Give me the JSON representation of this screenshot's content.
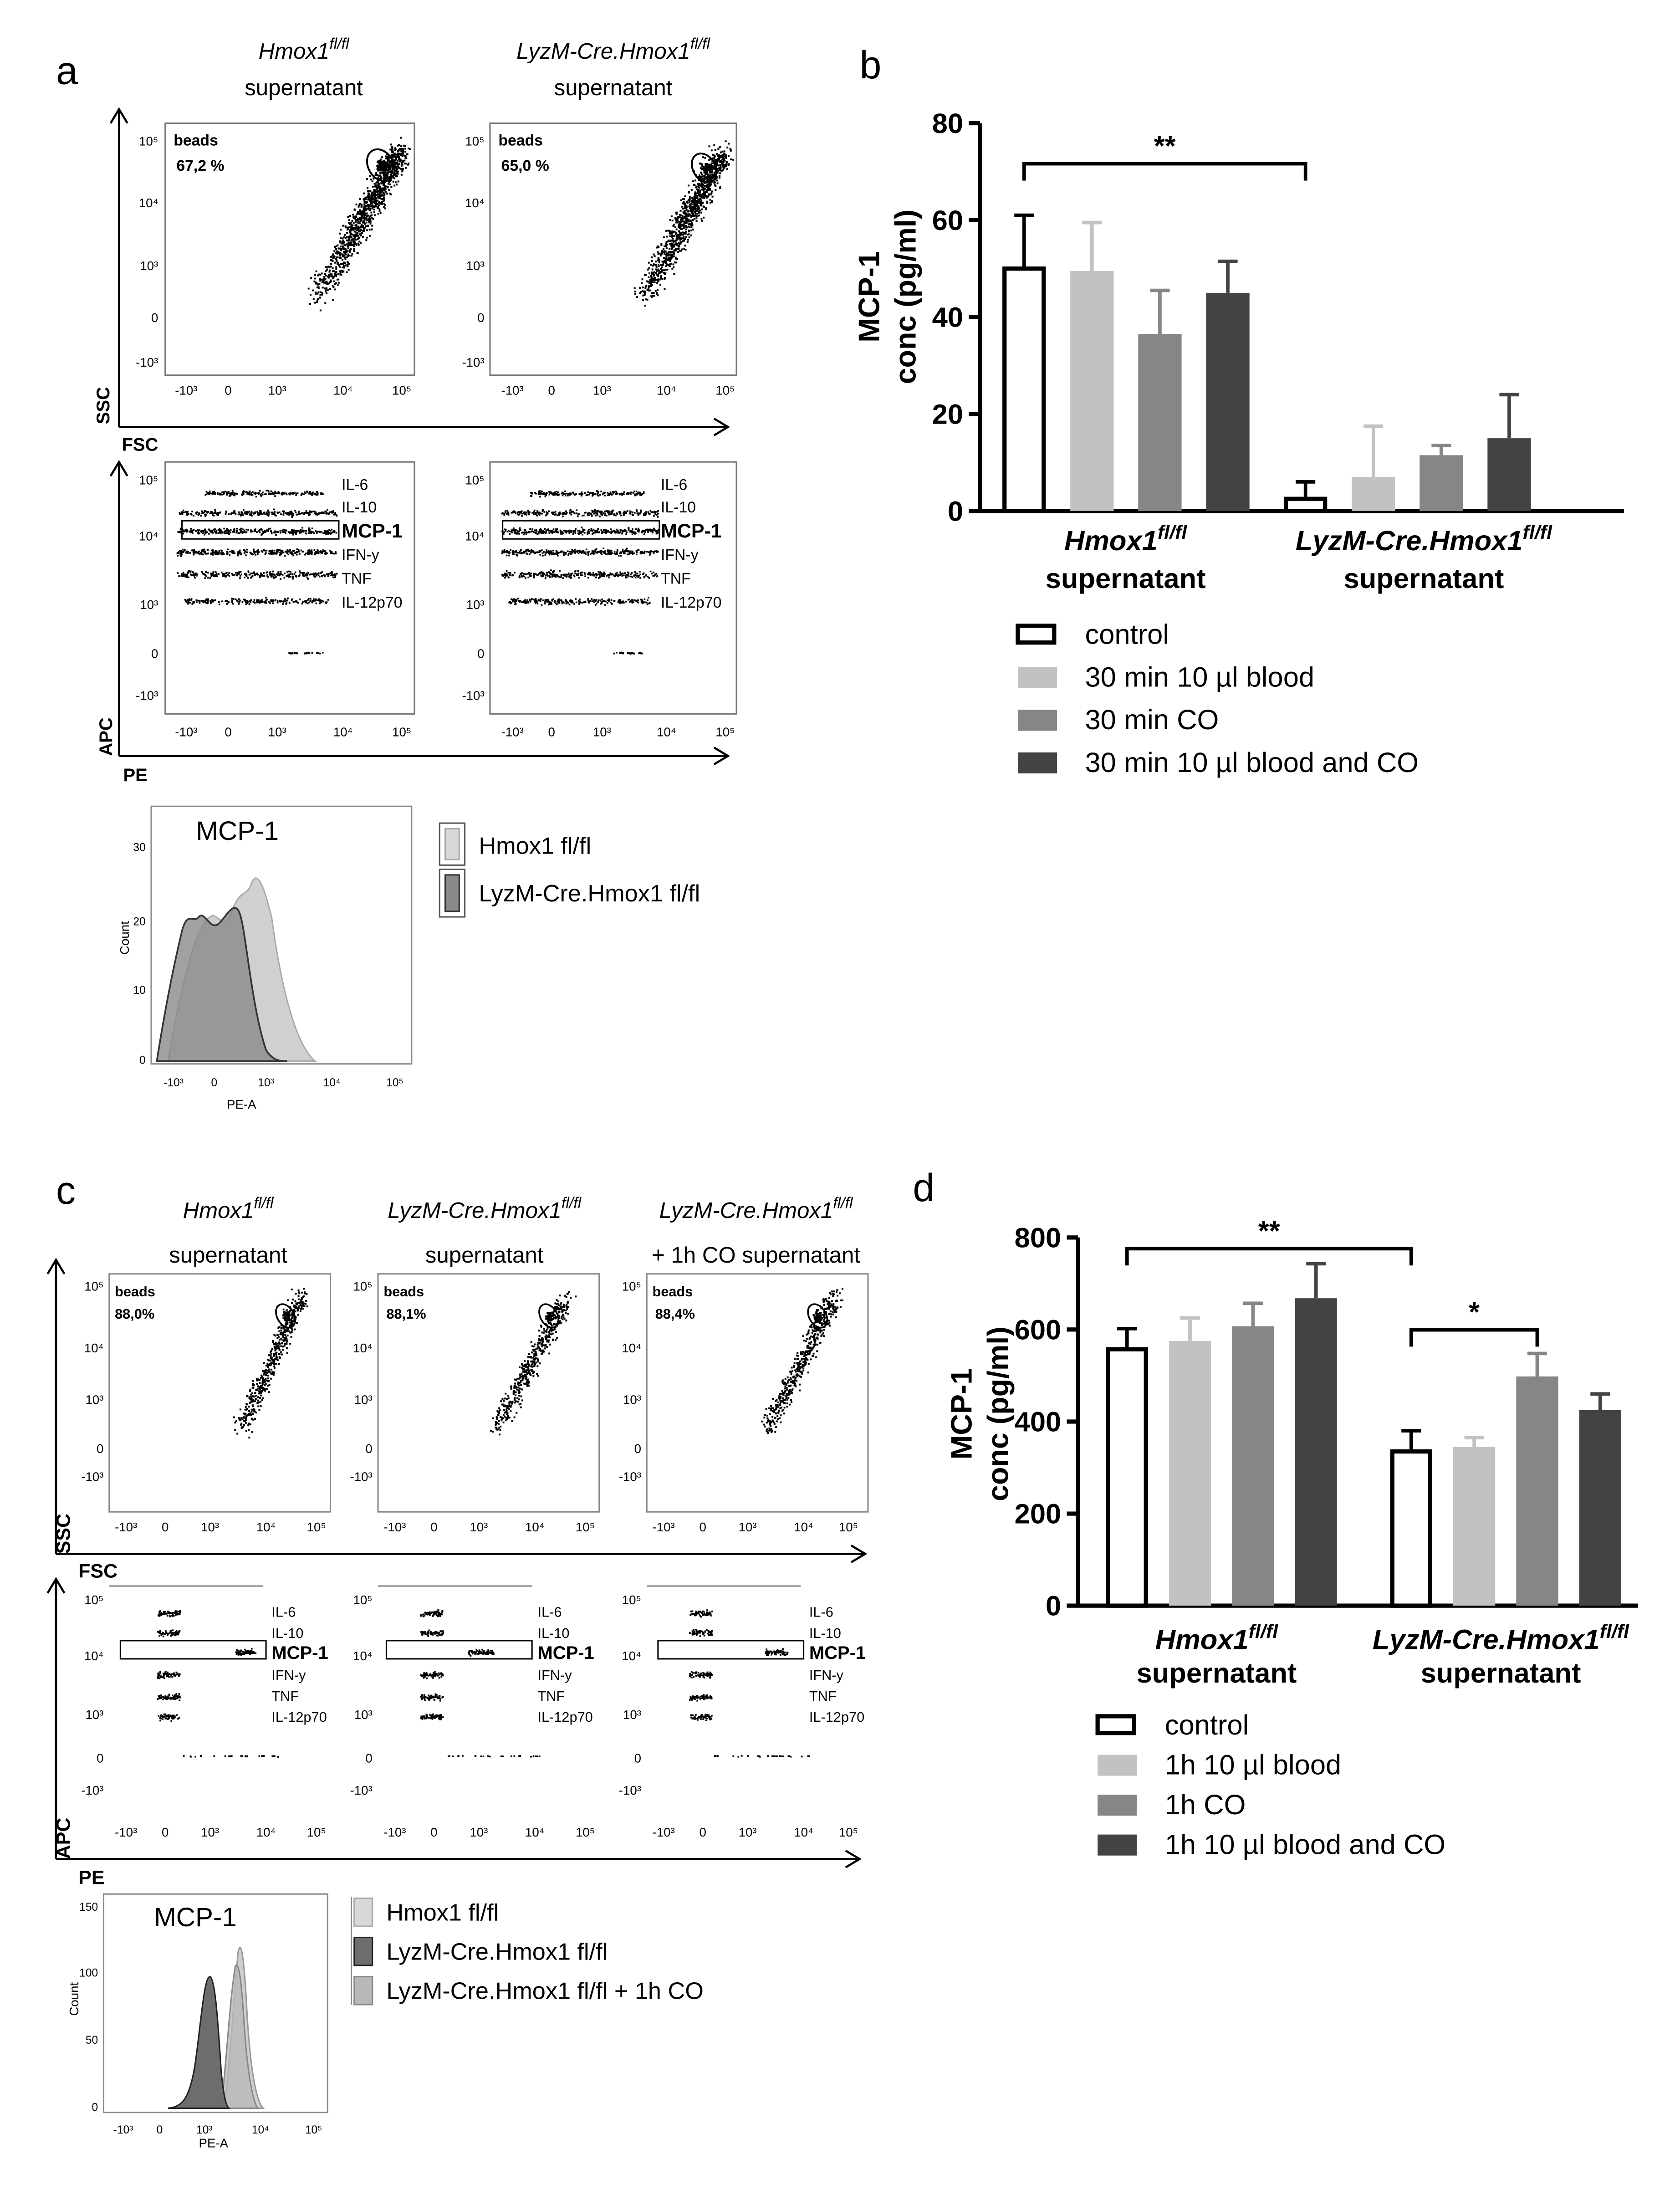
{
  "panels": {
    "a": {
      "letter": "a",
      "titles": [
        {
          "main": "Hmox1",
          "sup": "fl/fl",
          "line2": "supernatant"
        },
        {
          "main": "LyzM-Cre.Hmox1",
          "sup": "fl/fl",
          "line2": "supernatant"
        }
      ],
      "gates": [
        {
          "label": "beads",
          "pct": "67,2 %"
        },
        {
          "label": "beads",
          "pct": "65,0 %"
        }
      ],
      "ssc_ticks": [
        "10⁵",
        "10⁴",
        "10³",
        "0",
        "-10³"
      ],
      "fsc_ticks": [
        "-10³",
        "0",
        "10³",
        "10⁴",
        "10⁵"
      ],
      "x_axis_top": "FSC",
      "y_axis_top": "SSC",
      "x_axis_bottom": "PE",
      "y_axis_bottom": "APC",
      "cytokines": [
        "IL-6",
        "IL-10",
        "MCP-1",
        "IFN-y",
        "TNF",
        "IL-12p70"
      ],
      "histogram": {
        "title": "MCP-1",
        "ylabel": "Count",
        "xlabel": "PE-A",
        "yticks": [
          "0",
          "10",
          "20",
          "30"
        ],
        "xticks": [
          "-10³",
          "0",
          "10³",
          "10⁴",
          "10⁵"
        ],
        "legend": [
          "Hmox1 fl/fl",
          "LyzM-Cre.Hmox1 fl/fl"
        ]
      }
    },
    "c": {
      "letter": "c",
      "titles": [
        {
          "main": "Hmox1",
          "sup": "fl/fl",
          "line2": "supernatant"
        },
        {
          "main": "LyzM-Cre.Hmox1",
          "sup": "fl/fl",
          "line2": "supernatant"
        },
        {
          "main": "LyzM-Cre.Hmox1",
          "sup": "fl/fl",
          "line2": "+ 1h CO supernatant"
        }
      ],
      "gates": [
        {
          "label": "beads",
          "pct": "88,0%"
        },
        {
          "label": "beads",
          "pct": "88,1%"
        },
        {
          "label": "beads",
          "pct": "88,4%"
        }
      ],
      "ssc_ticks": [
        "10⁵",
        "10⁴",
        "10³",
        "0",
        "-10³"
      ],
      "fsc_ticks": [
        "-10³",
        "0",
        "10³",
        "10⁴",
        "10⁵"
      ],
      "x_axis_top": "FSC",
      "y_axis_top": "SSC",
      "x_axis_bottom": "PE",
      "y_axis_bottom": "APC",
      "cytokines": [
        "IL-6",
        "IL-10",
        "MCP-1",
        "IFN-y",
        "TNF",
        "IL-12p70"
      ],
      "histogram": {
        "title": "MCP-1",
        "ylabel": "Count",
        "xlabel": "PE-A",
        "yticks": [
          "0",
          "50",
          "100",
          "150"
        ],
        "xticks": [
          "-10³",
          "0",
          "10³",
          "10⁴",
          "10⁵"
        ],
        "legend": [
          "Hmox1 fl/fl",
          "LyzM-Cre.Hmox1 fl/fl",
          "LyzM-Cre.Hmox1 fl/fl + 1h CO"
        ]
      }
    }
  },
  "chart_data": [
    {
      "panel": "b",
      "type": "bar",
      "ylabel_line1": "MCP-1",
      "ylabel_line2": "conc (pg/ml)",
      "ylim": [
        0,
        80
      ],
      "yticks": [
        0,
        20,
        40,
        60,
        80
      ],
      "groups": [
        {
          "main": "Hmox1",
          "sup": "fl/fl",
          "line2": "supernatant"
        },
        {
          "main": "LyzM-Cre.Hmox1",
          "sup": "fl/fl",
          "line2": "supernatant"
        }
      ],
      "series": [
        {
          "name": "control",
          "color": "#ffffff",
          "values": [
            50,
            2.5
          ],
          "errors": [
            11,
            3.5
          ]
        },
        {
          "name": "30 min 10 µl blood",
          "color": "#c2c2c2",
          "values": [
            49.5,
            7
          ],
          "errors": [
            10,
            10.5
          ]
        },
        {
          "name": "30 min CO",
          "color": "#868686",
          "values": [
            36.5,
            11.5
          ],
          "errors": [
            9,
            2
          ]
        },
        {
          "name": "30 min 10 µl blood and CO",
          "color": "#434343",
          "values": [
            45,
            15
          ],
          "errors": [
            6.5,
            9
          ]
        }
      ],
      "significance": [
        {
          "label": "**",
          "from_group": 0,
          "to_group": 1
        }
      ]
    },
    {
      "panel": "d",
      "type": "bar",
      "ylabel_line1": "MCP-1",
      "ylabel_line2": "conc (pg/ml)",
      "ylim": [
        0,
        800
      ],
      "yticks": [
        0,
        200,
        400,
        600,
        800
      ],
      "groups": [
        {
          "main": "Hmox1",
          "sup": "fl/fl",
          "line2": "supernatant"
        },
        {
          "main": "LyzM-Cre.Hmox1",
          "sup": "fl/fl",
          "line2": "supernatant"
        }
      ],
      "series": [
        {
          "name": "control",
          "color": "#ffffff",
          "values": [
            557,
            335
          ],
          "errors": [
            45,
            45
          ]
        },
        {
          "name": "1h 10 µl blood",
          "color": "#c2c2c2",
          "values": [
            575,
            345
          ],
          "errors": [
            50,
            20
          ]
        },
        {
          "name": "1h CO",
          "color": "#868686",
          "values": [
            607,
            498
          ],
          "errors": [
            50,
            50
          ]
        },
        {
          "name": "1h 10 µl blood and CO",
          "color": "#434343",
          "values": [
            668,
            425
          ],
          "errors": [
            75,
            35
          ]
        }
      ],
      "significance": [
        {
          "label": "**",
          "from_group": 0,
          "to_group": 1
        },
        {
          "label": "*",
          "from_bar": [
            1,
            0
          ],
          "to_bar": [
            1,
            2
          ]
        }
      ]
    }
  ]
}
